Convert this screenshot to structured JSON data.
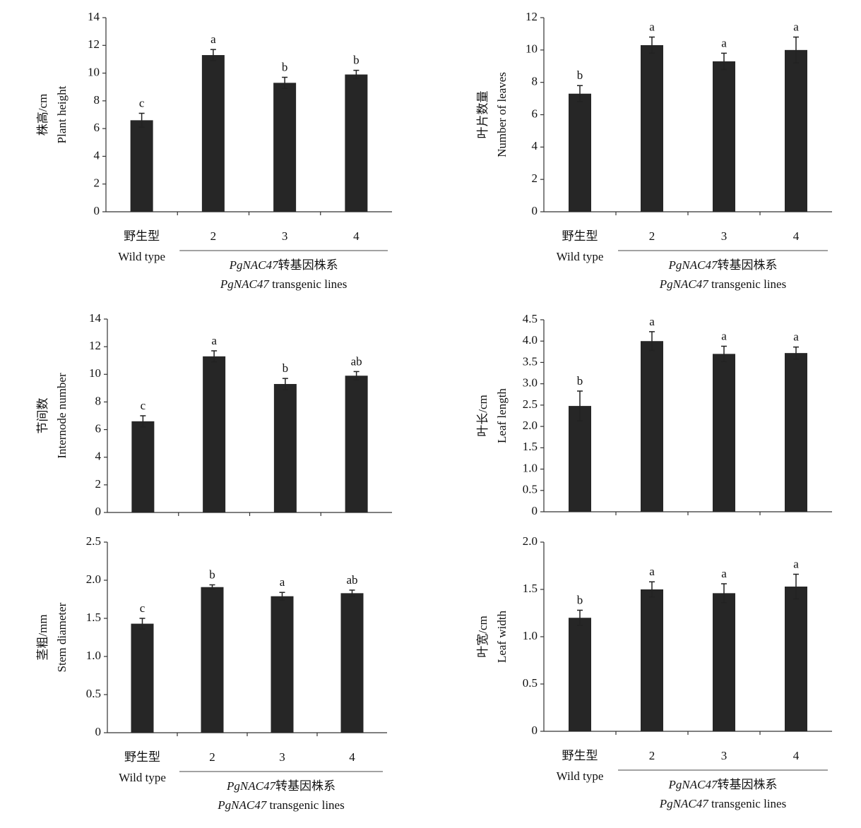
{
  "chart_data": [
    {
      "type": "bar",
      "ylabel": [
        "株高/cm",
        "Plant height"
      ],
      "categories": [
        "野生型",
        "2",
        "3",
        "4"
      ],
      "wild_type_label": "Wild type",
      "group_label": {
        "gene": "PgNAC47",
        "zh": "转基因株系",
        "en": " transgenic lines"
      },
      "values": [
        6.6,
        11.3,
        9.3,
        9.9
      ],
      "errors": [
        0.5,
        0.4,
        0.4,
        0.3
      ],
      "annotations": [
        "c",
        "a",
        "b",
        "b"
      ],
      "color": "#262626",
      "ylim": [
        0,
        14
      ],
      "yticks": [
        0,
        2,
        4,
        6,
        8,
        10,
        12,
        14
      ]
    },
    {
      "type": "bar",
      "ylabel": [
        "叶片数量",
        "Number of leaves"
      ],
      "categories": [
        "野生型",
        "2",
        "3",
        "4"
      ],
      "wild_type_label": "Wild type",
      "group_label": {
        "gene": "PgNAC47",
        "zh": "转基因株系",
        "en": " transgenic lines"
      },
      "values": [
        7.3,
        10.3,
        9.3,
        10.0
      ],
      "errors": [
        0.5,
        0.5,
        0.5,
        0.8
      ],
      "annotations": [
        "b",
        "a",
        "a",
        "a"
      ],
      "color": "#262626",
      "ylim": [
        0,
        12
      ],
      "yticks": [
        0,
        2,
        4,
        6,
        8,
        10,
        12
      ]
    },
    {
      "type": "bar",
      "ylabel": [
        "节间数",
        "Internode number"
      ],
      "categories": [
        null,
        null,
        null,
        null
      ],
      "values": [
        6.6,
        11.3,
        9.3,
        9.9
      ],
      "errors": [
        0.4,
        0.4,
        0.4,
        0.3
      ],
      "annotations": [
        "c",
        "a",
        "b",
        "ab"
      ],
      "color": "#262626",
      "ylim": [
        0,
        14
      ],
      "yticks": [
        0,
        2,
        4,
        6,
        8,
        10,
        12,
        14
      ]
    },
    {
      "type": "bar",
      "ylabel": [
        "叶长/cm",
        "Leaf length"
      ],
      "categories": [
        null,
        null,
        null,
        null
      ],
      "values": [
        2.48,
        4.0,
        3.7,
        3.72
      ],
      "errors": [
        0.35,
        0.22,
        0.18,
        0.14
      ],
      "annotations": [
        "b",
        "a",
        "a",
        "a"
      ],
      "color": "#262626",
      "ylim": [
        0,
        4.5
      ],
      "yticks": [
        0,
        0.5,
        {
          "value": 1,
          "label": "1.0"
        },
        1.5,
        {
          "value": 2,
          "label": "2.0"
        },
        2.5,
        {
          "value": 3,
          "label": "3.0"
        },
        3.5,
        {
          "value": 4,
          "label": "4.0"
        },
        4.5
      ]
    },
    {
      "type": "bar",
      "ylabel": [
        "茎粗/mm",
        "Stem diameter"
      ],
      "categories": [
        "野生型",
        "2",
        "3",
        "4"
      ],
      "wild_type_label": "Wild type",
      "group_label": {
        "gene": "PgNAC47",
        "zh": "转基因株系",
        "en": " transgenic lines"
      },
      "values": [
        1.43,
        1.91,
        1.79,
        1.83
      ],
      "errors": [
        0.07,
        0.03,
        0.05,
        0.04
      ],
      "annotations": [
        "c",
        "b",
        "a",
        "ab"
      ],
      "color": "#262626",
      "ylim": [
        0,
        2.5
      ],
      "yticks": [
        0,
        0.5,
        {
          "value": 1,
          "label": "1.0"
        },
        1.5,
        {
          "value": 2,
          "label": "2.0"
        },
        2.5
      ]
    },
    {
      "type": "bar",
      "ylabel": [
        "叶宽/cm",
        "Leaf width"
      ],
      "categories": [
        "野生型",
        "2",
        "3",
        "4"
      ],
      "wild_type_label": "Wild type",
      "group_label": {
        "gene": "PgNAC47",
        "zh": "转基因株系",
        "en": " transgenic lines"
      },
      "values": [
        1.2,
        1.5,
        1.46,
        1.53
      ],
      "errors": [
        0.08,
        0.08,
        0.1,
        0.13
      ],
      "annotations": [
        "b",
        "a",
        "a",
        "a"
      ],
      "color": "#262626",
      "ylim": [
        0,
        2
      ],
      "yticks": [
        0,
        0.5,
        {
          "value": 1,
          "label": "1.0"
        },
        1.5,
        {
          "value": 2,
          "label": "2.0"
        }
      ]
    }
  ]
}
